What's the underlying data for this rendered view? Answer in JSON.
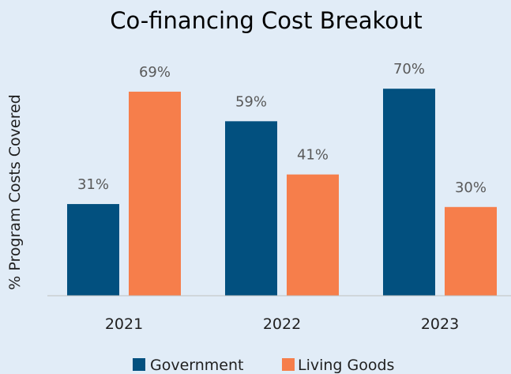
{
  "chart_data": {
    "type": "bar",
    "title": "Co-financing Cost Breakout",
    "xlabel": "",
    "ylabel": "% Program Costs Covered",
    "categories": [
      "2021",
      "2022",
      "2023"
    ],
    "series": [
      {
        "name": "Government",
        "values": [
          31,
          59,
          70
        ],
        "labels": [
          "31%",
          "59%",
          "70%"
        ],
        "color": "#02507f"
      },
      {
        "name": "Living Goods",
        "values": [
          69,
          41,
          30
        ],
        "labels": [
          "69%",
          "41%",
          "30%"
        ],
        "color": "#f67e4b"
      }
    ],
    "ylim": [
      0,
      100
    ],
    "grid": false,
    "legend_position": "bottom",
    "background_color": "#e1ecf7",
    "axis_color": "#bfbfbf"
  }
}
